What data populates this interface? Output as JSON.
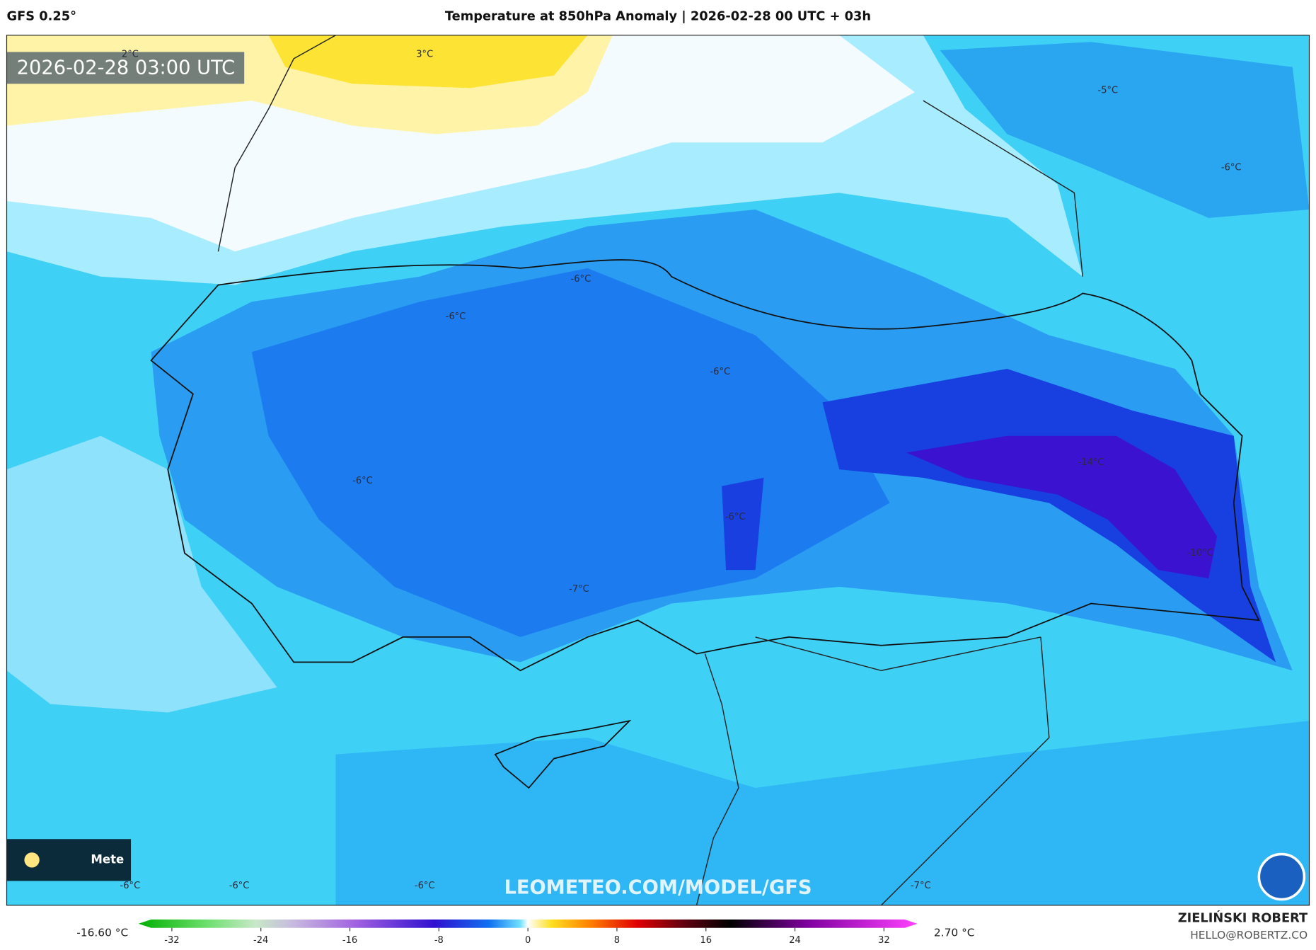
{
  "header": {
    "model": "GFS 0.25°",
    "title": "Temperature at 850hPa Anomaly | 2026-02-28 00 UTC + 03h"
  },
  "map": {
    "timestamp": "2026-02-28 03:00 UTC",
    "labels": [
      "2°C",
      "3°C",
      "-5°C",
      "-6°C",
      "-6°C",
      "-6°C",
      "-6°C",
      "-14°C",
      "-6°C",
      "-6°C",
      "-10°C",
      "-7°C",
      "-6°C",
      "-6°C",
      "-6°C",
      "-7°C"
    ],
    "watermark": "LEOMETEO.COM/MODEL/GFS",
    "logo_text": "Mete"
  },
  "colorbar": {
    "min_label": "-16.60 °C",
    "max_label": "2.70 °C",
    "lim": [
      -35,
      35
    ],
    "ticks": [
      -32,
      -24,
      -16,
      -8,
      0,
      8,
      16,
      24,
      32
    ]
  },
  "footer": {
    "author": "ZIELIŃSKI ROBERT",
    "contact": "HELLO@ROBERTZ.CO"
  }
}
